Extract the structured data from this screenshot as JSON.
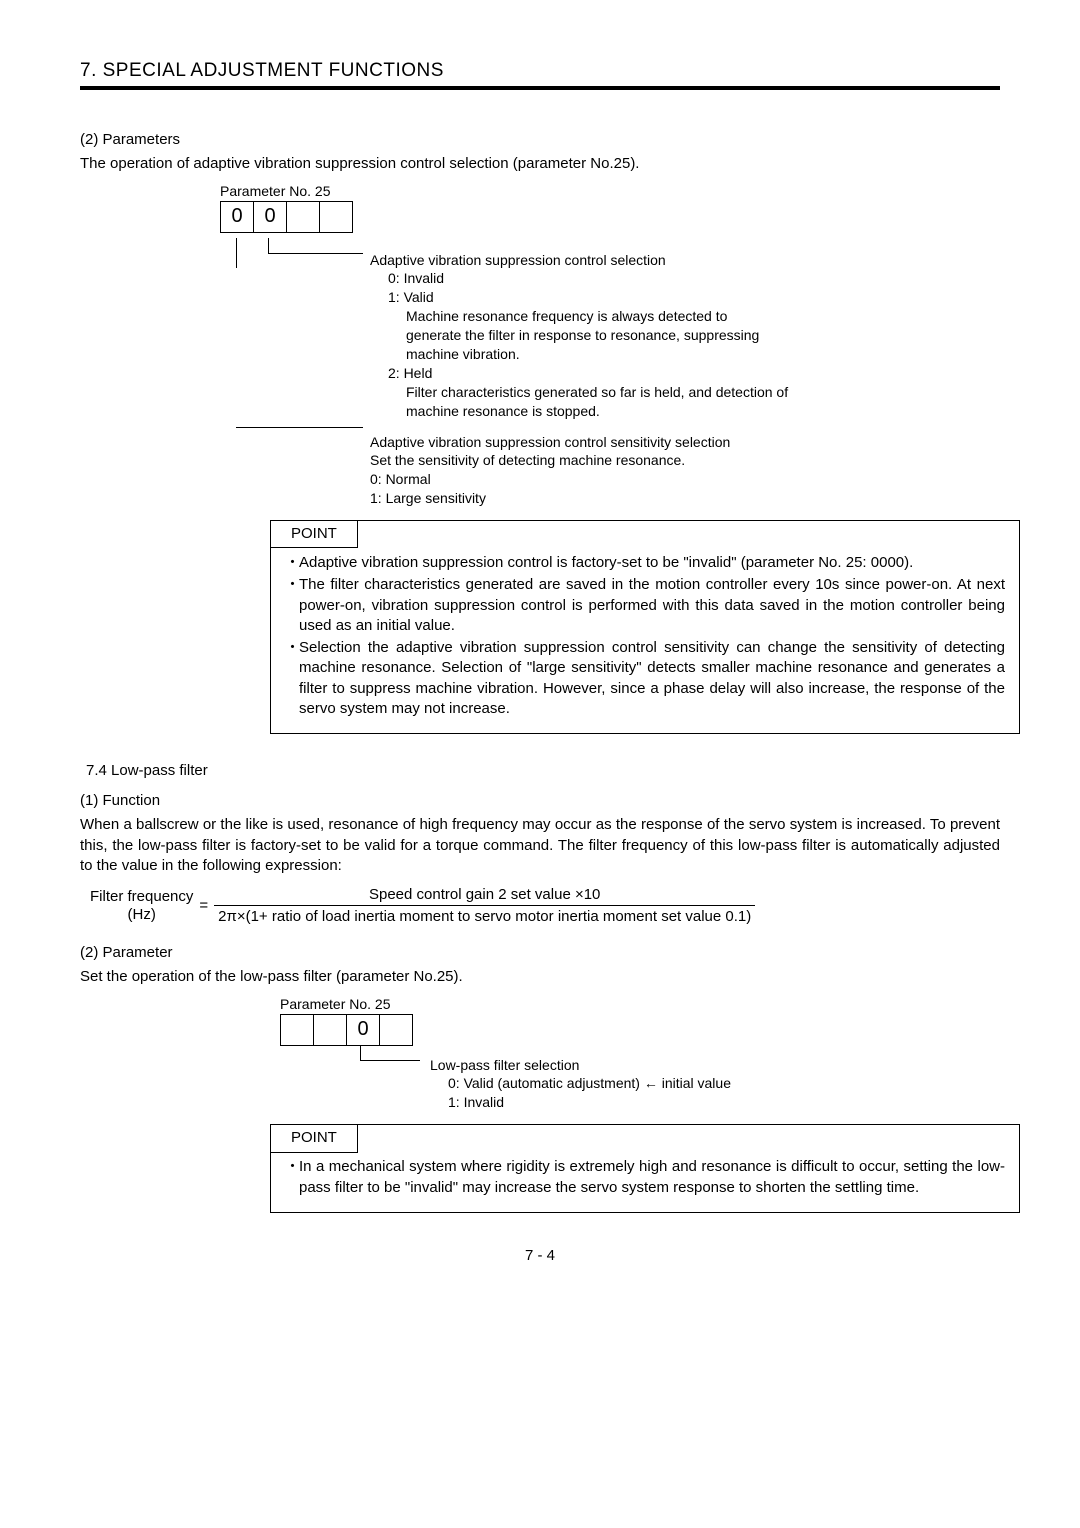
{
  "header": {
    "title": "7. SPECIAL ADJUSTMENT FUNCTIONS"
  },
  "sec1": {
    "num": "(2) Parameters",
    "intro": "The operation of adaptive vibration suppression control selection (parameter No.25)."
  },
  "diagram1": {
    "param_label": "Parameter No. 25",
    "digits": [
      "0",
      "0",
      "",
      ""
    ],
    "branch1": {
      "title": "Adaptive vibration suppression control selection",
      "l0": "0: Invalid",
      "l1": "1: Valid",
      "l1a": "Machine resonance frequency is always detected to",
      "l1b": "generate the filter in response to resonance, suppressing",
      "l1c": "machine vibration.",
      "l2": "2: Held",
      "l2a": "Filter characteristics generated so far is held, and detection of",
      "l2b": "machine resonance is stopped."
    },
    "branch2": {
      "title": "Adaptive vibration suppression control sensitivity selection",
      "l0": "Set the sensitivity of detecting machine resonance.",
      "l1": "0: Normal",
      "l2": "1: Large sensitivity"
    }
  },
  "point1": {
    "label": "POINT",
    "p1": "Adaptive vibration suppression control is factory-set to be \"invalid\" (parameter No. 25: 0000).",
    "p2": "The filter characteristics generated are saved in the motion controller every 10s since power-on. At next power-on, vibration suppression control is performed with this data saved in the motion controller being used as an initial value.",
    "p3": "Selection the adaptive vibration suppression control sensitivity can change the sensitivity of detecting machine resonance. Selection of \"large sensitivity\" detects smaller machine resonance and generates a filter to suppress machine vibration. However, since a phase delay will also increase, the response of the servo system may not increase."
  },
  "sec74": {
    "title": "7.4 Low-pass filter"
  },
  "sec2": {
    "num": "(1) Function",
    "body": "When a ballscrew or the like is used, resonance of high frequency may occur as the response of the servo system is increased. To prevent this, the low-pass filter is factory-set to be valid for a torque command. The filter frequency of this low-pass filter is automatically adjusted to the value in the following expression:"
  },
  "formula": {
    "lhs_top": "Filter frequency",
    "lhs_bot": "(Hz)",
    "num": "Speed control gain 2 set value  ×10",
    "den": "2π×(1+ ratio of load inertia moment to servo motor inertia moment set value    0.1)"
  },
  "sec3": {
    "num": "(2) Parameter",
    "intro": "Set the operation of the low-pass filter (parameter No.25)."
  },
  "diagram2": {
    "param_label": "Parameter No. 25",
    "digits": [
      "",
      "",
      "0",
      ""
    ],
    "title": "Low-pass filter selection",
    "l0": "0: Valid (automatic adjustment) ← initial value",
    "l1": "1: Invalid"
  },
  "point2": {
    "label": "POINT",
    "p1": "In a mechanical system where rigidity is extremely high and resonance is difficult to occur, setting the low-pass filter to be \"invalid\" may increase the servo system response to shorten the settling time."
  },
  "footer": {
    "page": "7 -  4"
  }
}
